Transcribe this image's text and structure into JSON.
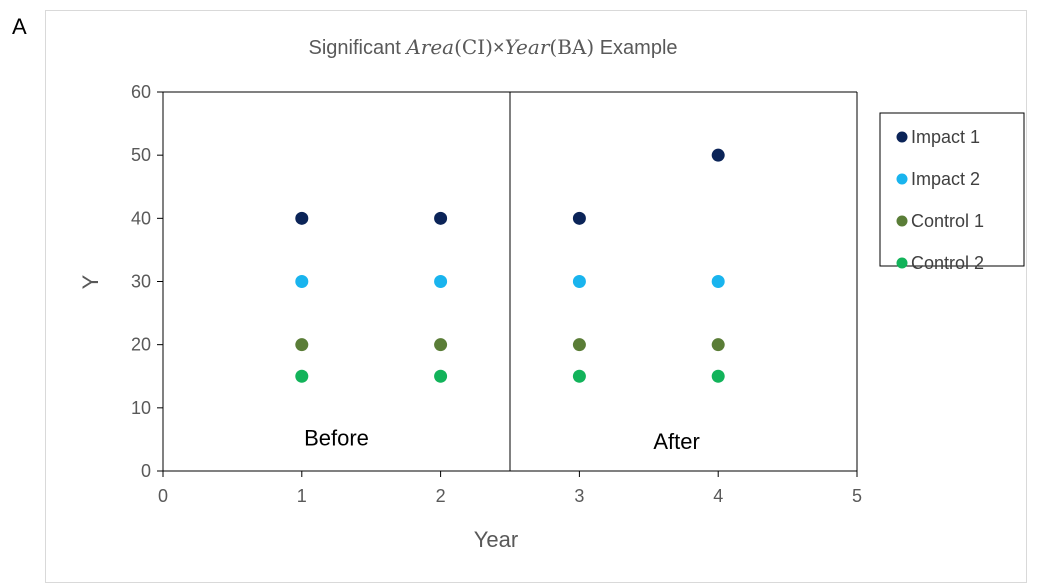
{
  "panel_label": "A",
  "chart_data": {
    "type": "scatter",
    "title": {
      "prefix": "Significant ",
      "math_area": "Area",
      "math_ci": "(CI)",
      "times": "×",
      "math_year": "Year",
      "math_ba": "(BA)",
      "suffix": " Example"
    },
    "xlabel": "Year",
    "ylabel": "Y",
    "xlim": [
      0,
      5
    ],
    "ylim": [
      0,
      60
    ],
    "xticks": [
      0,
      1,
      2,
      3,
      4,
      5
    ],
    "yticks": [
      0,
      10,
      20,
      30,
      40,
      50,
      60
    ],
    "grid": false,
    "divider_x": 2.5,
    "region_labels": [
      {
        "text": "Before",
        "x": 1.25,
        "y": 4
      },
      {
        "text": "After",
        "x": 3.7,
        "y": 3.5
      }
    ],
    "legend_position": "right",
    "series": [
      {
        "name": "Impact 1",
        "color": "#0b2458",
        "x": [
          1,
          2,
          3,
          4
        ],
        "y": [
          40,
          40,
          40,
          50
        ]
      },
      {
        "name": "Impact 2",
        "color": "#19b4ee",
        "x": [
          1,
          2,
          3,
          4
        ],
        "y": [
          30,
          30,
          30,
          30
        ]
      },
      {
        "name": "Control 1",
        "color": "#5a7d37",
        "x": [
          1,
          2,
          3,
          4
        ],
        "y": [
          20,
          20,
          20,
          20
        ]
      },
      {
        "name": "Control 2",
        "color": "#12b35a",
        "x": [
          1,
          2,
          3,
          4
        ],
        "y": [
          15,
          15,
          15,
          15
        ]
      }
    ]
  }
}
